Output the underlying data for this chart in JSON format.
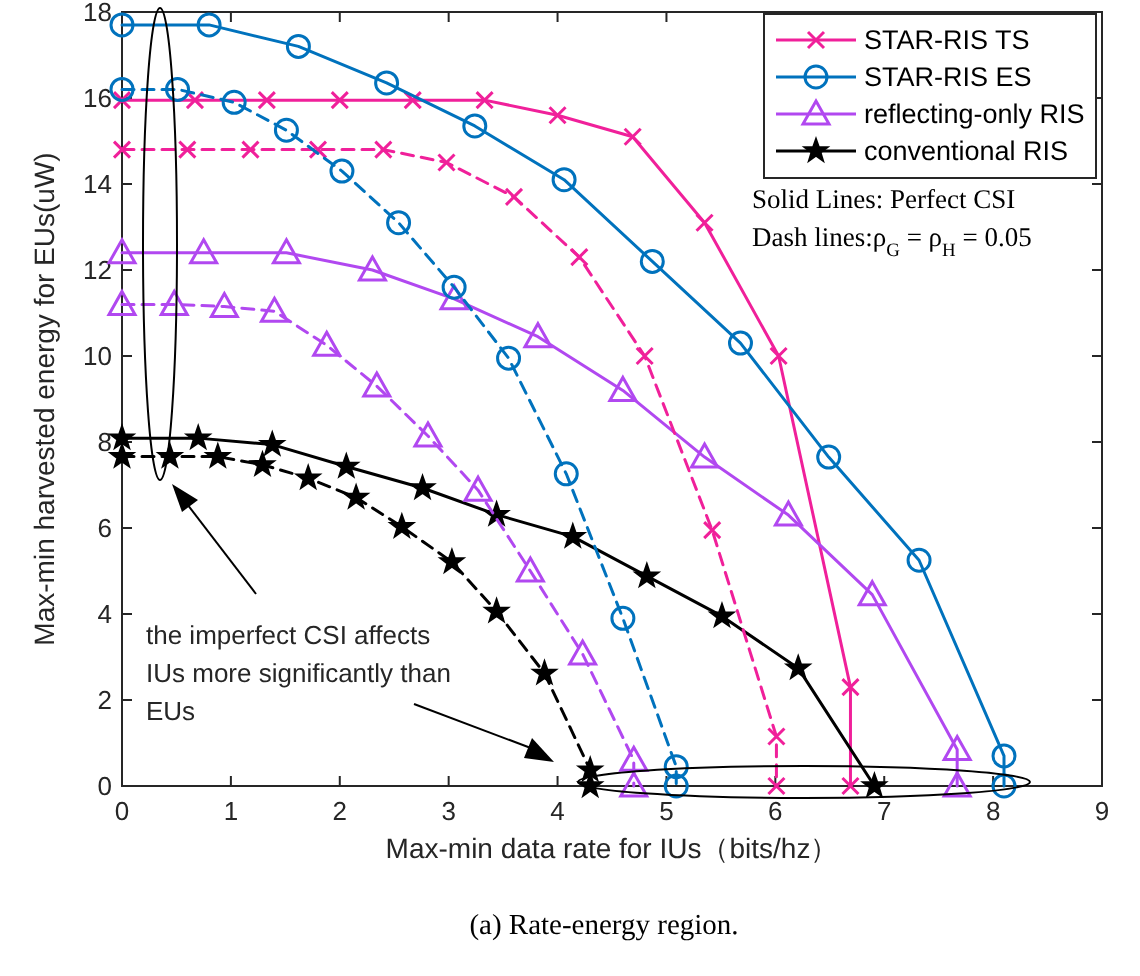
{
  "chart_data": {
    "type": "line",
    "xlabel": "Max-min data rate for IUs（bits/hz）",
    "ylabel": "Max-min harvested energy for EUs(uW)",
    "xlim": [
      0,
      9
    ],
    "ylim": [
      0,
      18
    ],
    "xticks": [
      0,
      1,
      2,
      3,
      4,
      5,
      6,
      7,
      8,
      9
    ],
    "yticks": [
      0,
      2,
      4,
      6,
      8,
      10,
      12,
      14,
      16,
      18
    ],
    "grid": false,
    "legend": "top right",
    "series": [
      {
        "name": "STAR-RIS TS",
        "color": "#f0209a",
        "marker": "cross",
        "line_style": "solid",
        "x": [
          0,
          0.67,
          1.33,
          2,
          2.67,
          3.33,
          4,
          4.69,
          5.35,
          6.03,
          6.69,
          6.69
        ],
        "values": [
          15.95,
          15.95,
          15.95,
          15.95,
          15.95,
          15.95,
          15.6,
          15.1,
          13.1,
          10,
          2.3,
          0
        ]
      },
      {
        "name": "STAR-RIS ES",
        "color": "#0072bd",
        "marker": "circle",
        "line_style": "solid",
        "x": [
          0,
          0.8,
          1.62,
          2.43,
          3.24,
          4.06,
          4.87,
          5.68,
          6.49,
          7.32,
          8.1,
          8.1
        ],
        "values": [
          17.7,
          17.7,
          17.2,
          16.35,
          15.35,
          14.1,
          12.2,
          10.3,
          7.65,
          5.25,
          0.7,
          0
        ]
      },
      {
        "name": "reflecting-only RIS",
        "color": "#b148f0",
        "marker": "triangle",
        "line_style": "solid",
        "x": [
          0,
          0.75,
          1.51,
          2.3,
          3.05,
          3.82,
          4.6,
          5.35,
          6.12,
          6.89,
          7.67,
          7.67
        ],
        "values": [
          12.4,
          12.4,
          12.4,
          12,
          11.33,
          10.45,
          9.2,
          7.65,
          6.3,
          4.45,
          0.85,
          0
        ]
      },
      {
        "name": "conventional RIS",
        "color": "#000000",
        "marker": "star",
        "line_style": "solid",
        "x": [
          0,
          0.7,
          1.38,
          2.06,
          2.76,
          3.44,
          4.14,
          4.82,
          5.51,
          6.21,
          6.91
        ],
        "values": [
          8.09,
          8.09,
          7.94,
          7.43,
          6.93,
          6.31,
          5.8,
          4.88,
          3.95,
          2.74,
          0
        ]
      },
      {
        "color": "#f0209a",
        "marker": "cross",
        "line_style": "dashed",
        "x": [
          0,
          0.6,
          1.18,
          1.8,
          2.4,
          2.98,
          3.6,
          4.2,
          4.8,
          5.42,
          6.01,
          6.01
        ],
        "values": [
          14.8,
          14.8,
          14.8,
          14.8,
          14.8,
          14.5,
          13.7,
          12.3,
          10,
          5.95,
          1.15,
          0
        ]
      },
      {
        "color": "#0072bd",
        "marker": "circle",
        "line_style": "dashed",
        "x": [
          0,
          0.51,
          1.03,
          1.51,
          2.02,
          2.54,
          3.05,
          3.55,
          4.08,
          4.6,
          5.09,
          5.09
        ],
        "values": [
          16.2,
          16.2,
          15.9,
          15.25,
          14.3,
          13.1,
          11.6,
          9.95,
          7.26,
          3.9,
          0.45,
          0
        ]
      },
      {
        "color": "#b148f0",
        "marker": "triangle",
        "line_style": "dashed",
        "x": [
          0,
          0.48,
          0.94,
          1.4,
          1.88,
          2.34,
          2.81,
          3.27,
          3.75,
          4.23,
          4.7,
          4.7
        ],
        "values": [
          11.2,
          11.2,
          11.15,
          11.04,
          10.25,
          9.3,
          8.14,
          6.88,
          5,
          3.07,
          0.6,
          0
        ]
      },
      {
        "color": "#000000",
        "marker": "star",
        "line_style": "dashed",
        "x": [
          0,
          0.44,
          0.88,
          1.29,
          1.71,
          2.15,
          2.57,
          3.03,
          3.44,
          3.88,
          4.3,
          4.3
        ],
        "values": [
          7.66,
          7.66,
          7.66,
          7.47,
          7.16,
          6.71,
          6.03,
          5.21,
          4.06,
          2.62,
          0.37,
          0
        ]
      }
    ],
    "annotations": [
      "Solid Lines: Perfect CSI",
      "Dash lines:ρ$_{G}$ = ρ$_{H}$ = 0.05",
      "the imperfect CSI affects IUs more significantly than EUs",
      "(a) Rate-energy region."
    ]
  }
}
